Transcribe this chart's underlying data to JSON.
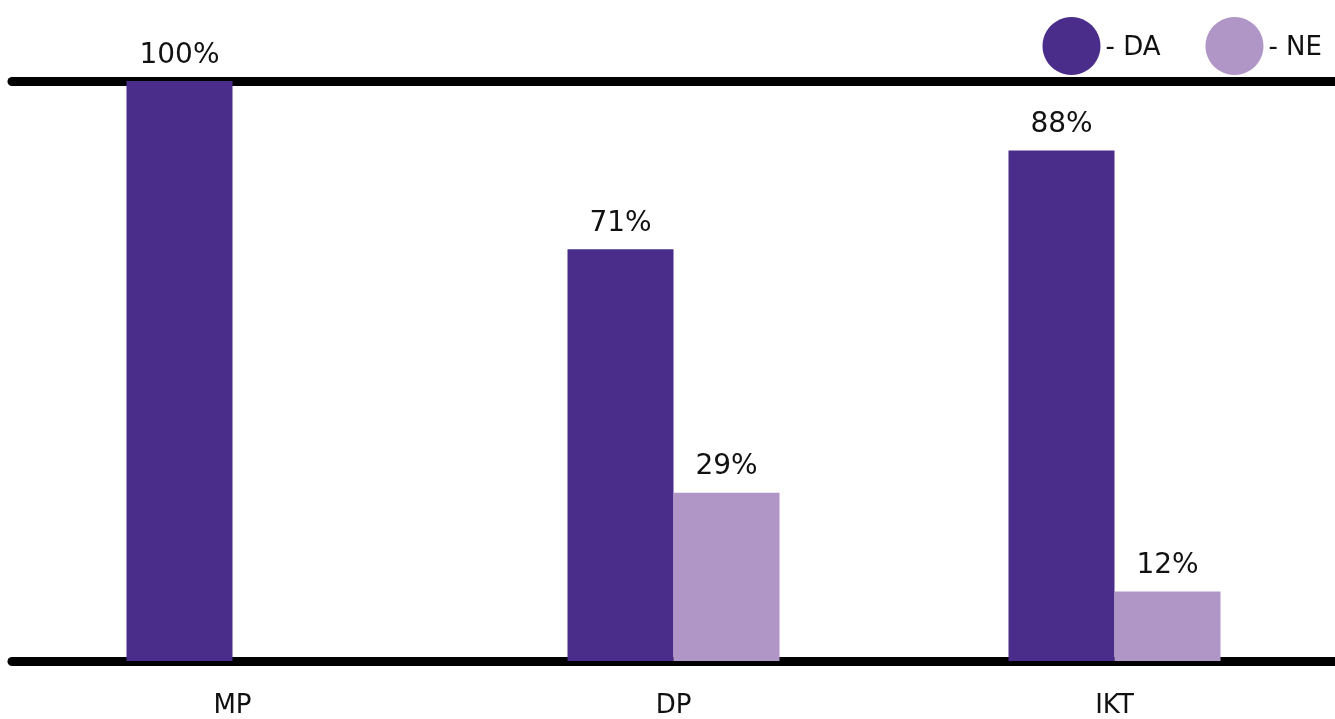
{
  "chart_data": {
    "type": "bar",
    "categories": [
      "MP",
      "DP",
      "IKT"
    ],
    "series": [
      {
        "name": "- DA",
        "color": "#4a2d8a",
        "values": [
          100,
          71,
          88
        ],
        "value_labels": [
          "100%",
          "71%",
          "88%"
        ]
      },
      {
        "name": "- NE",
        "color": "#b096c6",
        "values": [
          null,
          29,
          12
        ],
        "value_labels": [
          null,
          "29%",
          "12%"
        ]
      }
    ],
    "ylim": [
      0,
      100
    ],
    "tick_labels": "x",
    "legend": "top right",
    "grid": false
  }
}
